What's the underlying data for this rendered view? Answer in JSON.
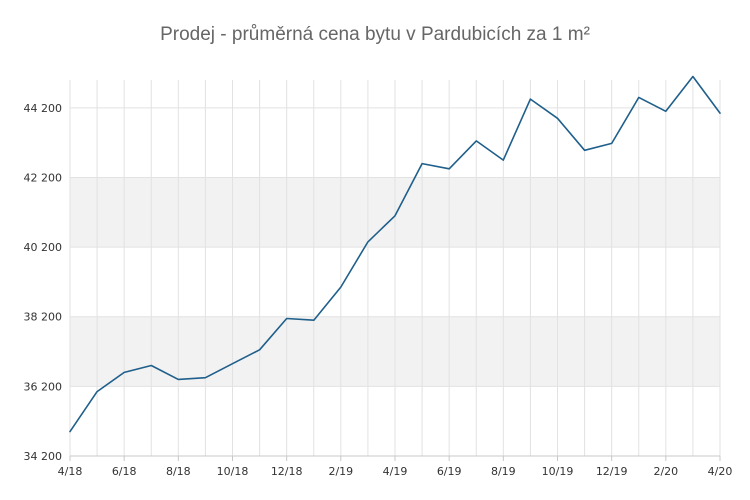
{
  "chart_data": {
    "type": "line",
    "title": "Prodej - průměrná cena bytu v Pardubicích za 1 m²",
    "xlabel": "",
    "ylabel": "",
    "ylim": [
      34200,
      45000
    ],
    "y_ticks": [
      34200,
      36200,
      38200,
      40200,
      42200,
      44200
    ],
    "y_tick_labels": [
      "34 200",
      "36 200",
      "38 200",
      "40 200",
      "42 200",
      "44 200"
    ],
    "x_tick_labels": [
      "4/18",
      "6/18",
      "8/18",
      "10/18",
      "12/18",
      "2/19",
      "4/19",
      "6/19",
      "8/19",
      "10/19",
      "12/19",
      "2/20",
      "4/20"
    ],
    "x": [
      "4/18",
      "5/18",
      "6/18",
      "7/18",
      "8/18",
      "9/18",
      "10/18",
      "11/18",
      "12/18",
      "1/19",
      "2/19",
      "3/19",
      "4/19",
      "5/19",
      "6/19",
      "7/19",
      "8/19",
      "9/19",
      "10/19",
      "11/19",
      "12/19",
      "1/20",
      "2/20",
      "3/20",
      "4/20"
    ],
    "series": [
      {
        "name": "",
        "color": "#1f5f8b",
        "values": [
          34900,
          36050,
          36600,
          36800,
          36400,
          36450,
          36850,
          37250,
          38150,
          38100,
          39050,
          40350,
          41100,
          42600,
          42450,
          43250,
          42700,
          44450,
          43900,
          42980,
          43180,
          44500,
          44100,
          45100,
          44050
        ]
      }
    ],
    "grid": true,
    "alternate_bands": true,
    "band_color": "#f2f2f2",
    "legend": "none"
  }
}
